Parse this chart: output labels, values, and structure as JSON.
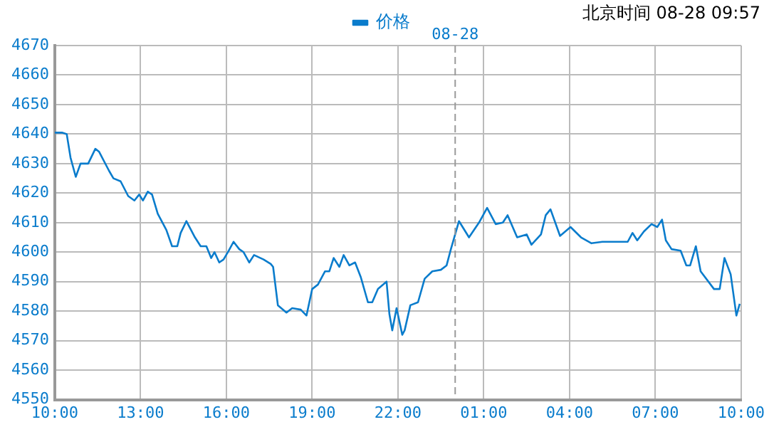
{
  "chart_data": {
    "type": "line",
    "annotations": [
      "北京时间 08-28 09:57"
    ],
    "x": [
      "--08-27T10:00",
      "--08-27T10:15",
      "--08-27T10:25",
      "--08-27T10:33",
      "--08-27T10:44",
      "--08-27T10:54",
      "--08-27T11:10",
      "--08-27T11:25",
      "--08-27T11:33",
      "--08-27T11:54",
      "--08-27T12:03",
      "--08-27T12:18",
      "--08-27T12:34",
      "--08-27T12:47",
      "--08-27T12:57",
      "--08-27T13:05",
      "--08-27T13:15",
      "--08-27T13:24",
      "--08-27T13:36",
      "--08-27T13:54",
      "--08-27T14:06",
      "--08-27T14:17",
      "--08-27T14:24",
      "--08-27T14:36",
      "--08-27T14:54",
      "--08-27T15:06",
      "--08-27T15:18",
      "--08-27T15:28",
      "--08-27T15:35",
      "--08-27T15:45",
      "--08-27T15:54",
      "--08-27T16:05",
      "--08-27T16:15",
      "--08-27T16:27",
      "--08-27T16:36",
      "--08-27T16:48",
      "--08-27T16:58",
      "--08-27T17:18",
      "--08-27T17:33",
      "--08-27T17:38",
      "--08-27T17:48",
      "--08-27T18:06",
      "--08-27T18:18",
      "--08-27T18:36",
      "--08-27T18:48",
      "--08-27T19:00",
      "--08-27T19:12",
      "--08-27T19:27",
      "--08-27T19:36",
      "--08-27T19:45",
      "--08-27T19:57",
      "--08-27T20:06",
      "--08-27T20:18",
      "--08-27T20:30",
      "--08-27T20:42",
      "--08-27T20:57",
      "--08-27T21:06",
      "--08-27T21:18",
      "--08-27T21:36",
      "--08-27T21:42",
      "--08-27T21:48",
      "--08-27T21:57",
      "--08-27T22:09",
      "--08-27T22:14",
      "--08-27T22:26",
      "--08-27T22:42",
      "--08-27T22:56",
      "--08-27T23:12",
      "--08-27T23:30",
      "--08-27T23:42",
      "--08-27T23:51",
      "--08-28T00:08",
      "--08-28T00:29",
      "--08-28T00:50",
      "--08-28T01:07",
      "--08-28T01:25",
      "--08-28T01:40",
      "--08-28T01:50",
      "--08-28T02:10",
      "--08-28T02:30",
      "--08-28T02:40",
      "--08-28T03:00",
      "--08-28T03:10",
      "--08-28T03:20",
      "--08-28T03:40",
      "--08-28T04:02",
      "--08-28T04:24",
      "--08-28T04:46",
      "--08-28T05:09",
      "--08-28T06:02",
      "--08-28T06:12",
      "--08-28T06:22",
      "--08-28T06:36",
      "--08-28T06:52",
      "--08-28T07:04",
      "--08-28T07:14",
      "--08-28T07:22",
      "--08-28T07:34",
      "--08-28T07:53",
      "--08-28T08:05",
      "--08-28T08:13",
      "--08-28T08:25",
      "--08-28T08:35",
      "--08-28T09:03",
      "--08-28T09:15",
      "--08-28T09:25",
      "--08-28T09:38",
      "--08-28T09:50",
      "--08-28T09:57"
    ],
    "series": [
      {
        "name": "价格",
        "color": "#0a7ccc",
        "values": [
          4640.5,
          4640.5,
          4640,
          4632,
          4625.5,
          4630,
          4630,
          4635,
          4634,
          4627.5,
          4625,
          4624,
          4619,
          4617.5,
          4619.5,
          4617.5,
          4620.5,
          4619.5,
          4613,
          4607.5,
          4602,
          4602,
          4606.5,
          4610.5,
          4605,
          4602,
          4602,
          4598,
          4600,
          4596.5,
          4597.5,
          4600.5,
          4603.5,
          4601,
          4600,
          4596.5,
          4599,
          4597.5,
          4596,
          4595,
          4582,
          4579.5,
          4581,
          4580.5,
          4578.5,
          4587.5,
          4589,
          4593.5,
          4593.5,
          4598,
          4595,
          4599,
          4595.5,
          4596.5,
          4591.5,
          4583,
          4583,
          4587.5,
          4590,
          4579,
          4573.5,
          4581,
          4572,
          4573.5,
          4582,
          4583,
          4591,
          4593.5,
          4594,
          4595.5,
          4601,
          4610.5,
          4605,
          4610,
          4615,
          4609.5,
          4610,
          4612.5,
          4605,
          4606,
          4602.5,
          4606,
          4612.5,
          4614.5,
          4605.5,
          4608.5,
          4605,
          4603,
          4603.5,
          4603.5,
          4606.5,
          4604,
          4607,
          4609.5,
          4608.5,
          4611,
          4604,
          4601,
          4600.5,
          4595.5,
          4595.5,
          4602,
          4593.5,
          4587.5,
          4587.5,
          4598,
          4592.5,
          4578.5,
          4582.5
        ]
      }
    ],
    "xlim": [
      "--08-27T10:00",
      "--08-28T10:00"
    ],
    "xticks": [
      {
        "value": "--08-27T10:00",
        "label": "10:00"
      },
      {
        "value": "--08-27T13:00",
        "label": "13:00"
      },
      {
        "value": "--08-27T16:00",
        "label": "16:00"
      },
      {
        "value": "--08-27T19:00",
        "label": "19:00"
      },
      {
        "value": "--08-27T22:00",
        "label": "22:00"
      },
      {
        "value": "--08-28T01:00",
        "label": "01:00"
      },
      {
        "value": "--08-28T04:00",
        "label": "04:00"
      },
      {
        "value": "--08-28T07:00",
        "label": "07:00"
      },
      {
        "value": "--08-28T10:00",
        "label": "10:00"
      }
    ],
    "ylim": [
      4550,
      4670
    ],
    "yticks": [
      4550,
      4560,
      4570,
      4580,
      4590,
      4600,
      4610,
      4620,
      4630,
      4640,
      4650,
      4660,
      4670
    ],
    "ref_lines": [
      {
        "axis": "x",
        "value": "--08-28T00:00",
        "label": "08-28",
        "color": "#999999",
        "line_style": "dashed"
      }
    ],
    "grid": true,
    "legend": "top",
    "marker": "none",
    "line_style": "solid"
  }
}
